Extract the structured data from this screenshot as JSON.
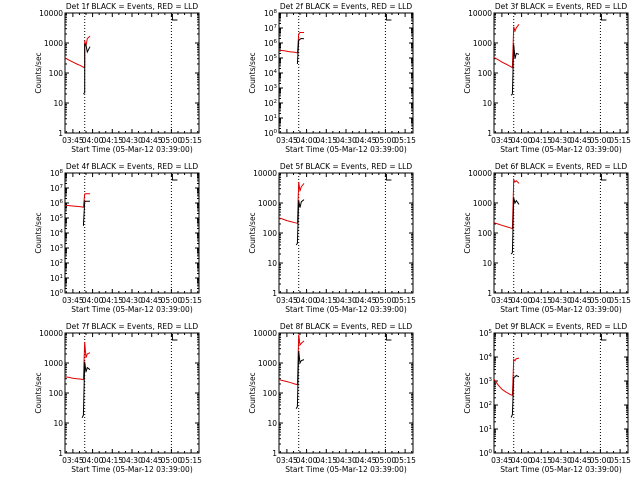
{
  "chart_data": {
    "type": "line",
    "x_ticks": [
      "03:45",
      "04:00",
      "04:15",
      "04:30",
      "04:45",
      "05:00",
      "05:15"
    ],
    "xlabel": "Start Time (05-Mar-12 03:39:00)",
    "ylabel": "Counts/sec",
    "y_scale": "log",
    "vertical_markers": [
      "03:54",
      "05:00"
    ],
    "colors": {
      "events": "#000000",
      "lld": "#e00000"
    },
    "panels": [
      {
        "title": "Det 1f BLACK = Events, RED = LLD",
        "ylim": [
          1,
          10000
        ],
        "y_ticks": [
          "1",
          "10",
          "100",
          "1000",
          "10000"
        ],
        "series": [
          {
            "key": "lld",
            "x": [
              "03:39",
              "03:42",
              "03:45",
              "03:48",
              "03:51",
              "03:53",
              "03:54",
              "03:54",
              "03:55",
              "03:56",
              "03:58"
            ],
            "y": [
              320,
              270,
              230,
              200,
              175,
              155,
              160,
              1200,
              800,
              1400,
              1700
            ]
          },
          {
            "key": "events",
            "x": [
              "03:53",
              "03:54",
              "03:54",
              "03:55",
              "03:56",
              "03:58"
            ],
            "y": [
              20,
              22,
              900,
              850,
              500,
              750
            ]
          }
        ]
      },
      {
        "title": "Det 2f BLACK = Events, RED = LLD",
        "ylim": [
          1,
          100000000
        ],
        "y_ticks": [
          "10^0",
          "10^1",
          "10^2",
          "10^3",
          "10^4",
          "10^5",
          "10^6",
          "10^7",
          "10^8"
        ],
        "series": [
          {
            "key": "lld",
            "x": [
              "03:39",
              "03:43",
              "03:47",
              "03:51",
              "03:53",
              "03:54",
              "03:55",
              "03:56",
              "03:58"
            ],
            "y": [
              330000,
              300000,
              260000,
              240000,
              220000,
              4000000,
              5000000,
              5000000,
              5000000
            ]
          },
          {
            "key": "events",
            "x": [
              "03:53",
              "03:54",
              "03:55",
              "03:56",
              "03:58"
            ],
            "y": [
              40000,
              1500000,
              1800000,
              2000000,
              1900000
            ]
          }
        ]
      },
      {
        "title": "Det 3f BLACK = Events, RED = LLD",
        "ylim": [
          1,
          10000
        ],
        "y_ticks": [
          "1",
          "10",
          "100",
          "1000",
          "10000"
        ],
        "series": [
          {
            "key": "lld",
            "x": [
              "03:39",
              "03:42",
              "03:45",
              "03:48",
              "03:51",
              "03:53",
              "03:54",
              "03:55",
              "03:56",
              "03:58"
            ],
            "y": [
              330,
              280,
              230,
              200,
              170,
              150,
              3500,
              2500,
              3200,
              4200
            ]
          },
          {
            "key": "events",
            "x": [
              "03:52",
              "03:53",
              "03:54",
              "03:55",
              "03:56",
              "03:58"
            ],
            "y": [
              18,
              20,
              900,
              300,
              450,
              420
            ]
          }
        ]
      },
      {
        "title": "Det 4f BLACK = Events, RED = LLD",
        "ylim": [
          1,
          100000000
        ],
        "y_ticks": [
          "10^0",
          "10^1",
          "10^2",
          "10^3",
          "10^4",
          "10^5",
          "10^6",
          "10^7",
          "10^8"
        ],
        "series": [
          {
            "key": "lld",
            "x": [
              "03:39",
              "03:43",
              "03:47",
              "03:51",
              "03:53",
              "03:54",
              "03:55",
              "03:58"
            ],
            "y": [
              700000,
              650000,
              600000,
              560000,
              520000,
              4000000,
              4200000,
              4200000
            ]
          },
          {
            "key": "events",
            "x": [
              "03:53",
              "03:54",
              "03:55",
              "03:58"
            ],
            "y": [
              30000,
              1200000,
              1300000,
              1300000
            ]
          }
        ]
      },
      {
        "title": "Det 5f BLACK = Events, RED = LLD",
        "ylim": [
          1,
          10000
        ],
        "y_ticks": [
          "1",
          "10",
          "100",
          "1000",
          "10000"
        ],
        "series": [
          {
            "key": "lld",
            "x": [
              "03:39",
              "03:42",
              "03:45",
              "03:48",
              "03:51",
              "03:53",
              "03:54",
              "03:55",
              "03:56",
              "03:58"
            ],
            "y": [
              320,
              290,
              260,
              240,
              220,
              210,
              5000,
              2500,
              3500,
              4500
            ]
          },
          {
            "key": "events",
            "x": [
              "03:52",
              "03:53",
              "03:54",
              "03:55",
              "03:56",
              "03:58"
            ],
            "y": [
              40,
              45,
              1200,
              700,
              1100,
              1300
            ]
          }
        ]
      },
      {
        "title": "Det 6f BLACK = Events, RED = LLD",
        "ylim": [
          1,
          10000
        ],
        "y_ticks": [
          "1",
          "10",
          "100",
          "1000",
          "10000"
        ],
        "series": [
          {
            "key": "lld",
            "x": [
              "03:39",
              "03:42",
              "03:45",
              "03:48",
              "03:51",
              "03:53",
              "03:54",
              "03:55",
              "03:56",
              "03:58"
            ],
            "y": [
              220,
              200,
              180,
              165,
              150,
              140,
              6000,
              5000,
              5500,
              4500
            ]
          },
          {
            "key": "events",
            "x": [
              "03:52",
              "03:53",
              "03:54",
              "03:55",
              "03:56",
              "03:58"
            ],
            "y": [
              20,
              22,
              1500,
              1000,
              1200,
              900
            ]
          }
        ]
      },
      {
        "title": "Det 7f BLACK = Events, RED = LLD",
        "ylim": [
          1,
          10000
        ],
        "y_ticks": [
          "1",
          "10",
          "100",
          "1000",
          "10000"
        ],
        "series": [
          {
            "key": "lld",
            "x": [
              "03:39",
              "03:42",
              "03:45",
              "03:48",
              "03:51",
              "03:53",
              "03:54",
              "03:55",
              "03:56",
              "03:58"
            ],
            "y": [
              350,
              330,
              310,
              300,
              290,
              280,
              5000,
              1500,
              2000,
              2200
            ]
          },
          {
            "key": "events",
            "x": [
              "03:52",
              "03:53",
              "03:54",
              "03:55",
              "03:56",
              "03:58"
            ],
            "y": [
              15,
              18,
              1100,
              500,
              700,
              600
            ]
          }
        ]
      },
      {
        "title": "Det 8f BLACK = Events, RED = LLD",
        "ylim": [
          1,
          10000
        ],
        "y_ticks": [
          "1",
          "10",
          "100",
          "1000",
          "10000"
        ],
        "series": [
          {
            "key": "lld",
            "x": [
              "03:39",
              "03:42",
              "03:45",
              "03:48",
              "03:51",
              "03:53",
              "03:54",
              "03:55",
              "03:56",
              "03:58"
            ],
            "y": [
              280,
              260,
              240,
              220,
              200,
              190,
              9000,
              4000,
              4500,
              5500
            ]
          },
          {
            "key": "events",
            "x": [
              "03:52",
              "03:53",
              "03:54",
              "03:55",
              "03:56",
              "03:58"
            ],
            "y": [
              30,
              35,
              2500,
              1000,
              1200,
              1300
            ]
          }
        ]
      },
      {
        "title": "Det 9f BLACK = Events, RED = LLD",
        "ylim": [
          1,
          100000
        ],
        "y_ticks": [
          "10^0",
          "10^1",
          "10^2",
          "10^3",
          "10^4",
          "10^5"
        ],
        "series": [
          {
            "key": "lld",
            "x": [
              "03:39",
              "03:42",
              "03:45",
              "03:48",
              "03:51",
              "03:53",
              "03:54",
              "03:55",
              "03:56",
              "03:58"
            ],
            "y": [
              1200,
              700,
              450,
              350,
              280,
              250,
              8000,
              7000,
              8500,
              9000
            ]
          },
          {
            "key": "events",
            "x": [
              "03:52",
              "03:53",
              "03:54",
              "03:55",
              "03:56",
              "03:58"
            ],
            "y": [
              30,
              40,
              1400,
              1500,
              1700,
              1500
            ]
          }
        ]
      }
    ]
  }
}
